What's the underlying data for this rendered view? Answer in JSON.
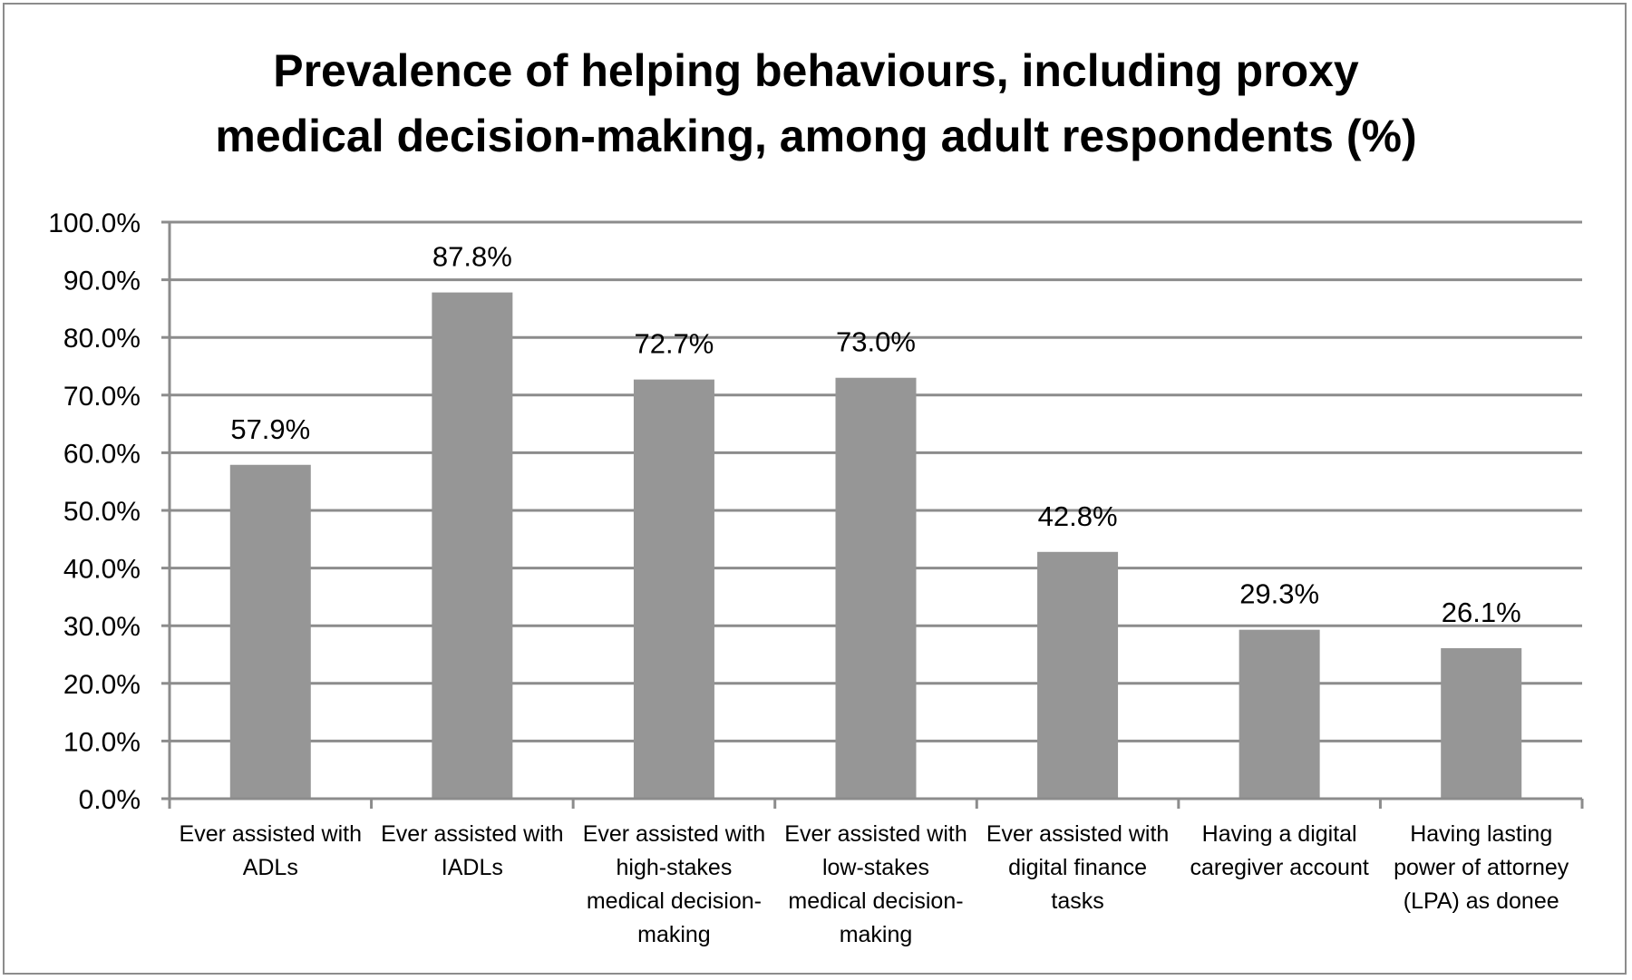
{
  "chart_data": {
    "type": "bar",
    "title_lines": [
      "Prevalence of helping behaviours, including proxy",
      "medical decision-making, among adult respondents (%)"
    ],
    "categories": [
      [
        "Ever assisted with",
        "ADLs"
      ],
      [
        "Ever assisted with",
        "IADLs"
      ],
      [
        "Ever assisted with",
        "high-stakes",
        "medical decision-",
        "making"
      ],
      [
        "Ever assisted with",
        "low-stakes",
        "medical decision-",
        "making"
      ],
      [
        "Ever assisted with",
        "digital finance",
        "tasks"
      ],
      [
        "Having a digital",
        "caregiver account"
      ],
      [
        "Having lasting",
        "power of attorney",
        "(LPA) as donee"
      ]
    ],
    "values": [
      57.9,
      87.8,
      72.7,
      73.0,
      42.8,
      29.3,
      26.1
    ],
    "value_labels": [
      "57.9%",
      "87.8%",
      "72.7%",
      "73.0%",
      "42.8%",
      "29.3%",
      "26.1%"
    ],
    "y_ticks": [
      0,
      10,
      20,
      30,
      40,
      50,
      60,
      70,
      80,
      90,
      100
    ],
    "y_tick_labels": [
      "0.0%",
      "10.0%",
      "20.0%",
      "30.0%",
      "40.0%",
      "50.0%",
      "60.0%",
      "70.0%",
      "80.0%",
      "90.0%",
      "100.0%"
    ],
    "ylim": [
      0,
      100
    ],
    "grid": true,
    "legend": "none",
    "colors": {
      "bar": "#969696",
      "grid": "#8c8c8c",
      "axis": "#8c8c8c",
      "border": "#8c8c8c",
      "text": "#000000"
    }
  }
}
